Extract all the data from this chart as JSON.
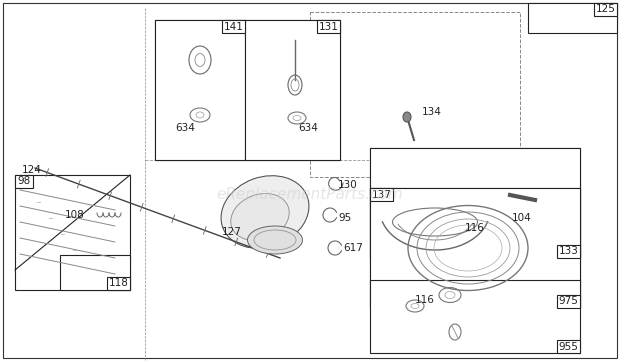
{
  "bg_color": "#ffffff",
  "watermark": "eReplacementParts.com",
  "watermark_color": "#cccccc",
  "watermark_alpha": 0.5,
  "watermark_fontsize": 11,
  "lc": "#222222",
  "lw": 0.8,
  "fs": 7.5
}
